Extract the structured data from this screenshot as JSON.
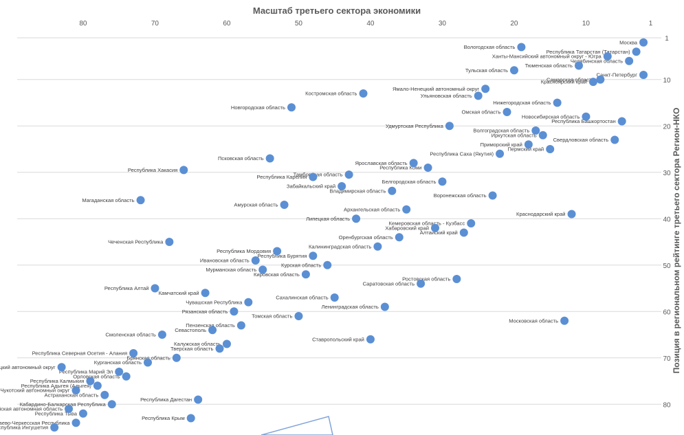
{
  "chart_data": {
    "type": "scatter",
    "title": "Масштаб третьего сектора экономики",
    "xlabel": "",
    "ylabel": "Позиция в региональном рейтинге третьего сектора Регион-НКО",
    "x_reversed": true,
    "y_reversed": true,
    "xlim": [
      1,
      84
    ],
    "ylim": [
      1,
      84
    ],
    "x_ticks": [
      80,
      70,
      60,
      50,
      40,
      30,
      20,
      10,
      1
    ],
    "y_ticks": [
      1,
      10,
      20,
      30,
      40,
      50,
      60,
      70,
      80
    ],
    "grid": "horizontal",
    "color": "#5b8fd4",
    "points": [
      {
        "name": "Москва",
        "x": 2,
        "y": 2
      },
      {
        "name": "Вологодская область",
        "x": 19,
        "y": 3
      },
      {
        "name": "Республика Татарстан (Татарстан)",
        "x": 3,
        "y": 4
      },
      {
        "name": "Ханты-Мансийский автономный округ - Югра",
        "x": 7,
        "y": 5
      },
      {
        "name": "Челябинская область",
        "x": 4,
        "y": 6
      },
      {
        "name": "Тюменская область",
        "x": 11,
        "y": 7
      },
      {
        "name": "Тульская область",
        "x": 20,
        "y": 8
      },
      {
        "name": "Санкт-Петербург",
        "x": 2,
        "y": 9
      },
      {
        "name": "Самарская область",
        "x": 8,
        "y": 10
      },
      {
        "name": "Красноярский край",
        "x": 9,
        "y": 10.5
      },
      {
        "name": "Ямало-Ненецкий автономный округ",
        "x": 24,
        "y": 12
      },
      {
        "name": "Костромская область",
        "x": 41,
        "y": 13
      },
      {
        "name": "Ульяновская область",
        "x": 25,
        "y": 13.5
      },
      {
        "name": "Нижегородская область",
        "x": 14,
        "y": 15
      },
      {
        "name": "Новгородская область",
        "x": 51,
        "y": 16
      },
      {
        "name": "Омская область",
        "x": 21,
        "y": 17
      },
      {
        "name": "Новосибирская область",
        "x": 10,
        "y": 18
      },
      {
        "name": "Республика Башкортостан",
        "x": 5,
        "y": 19
      },
      {
        "name": "Удмуртская Республика",
        "x": 29,
        "y": 20
      },
      {
        "name": "Волгоградская область",
        "x": 17,
        "y": 21
      },
      {
        "name": "Иркутская область",
        "x": 16,
        "y": 22
      },
      {
        "name": "Свердловская область",
        "x": 6,
        "y": 23
      },
      {
        "name": "Приморский край",
        "x": 18,
        "y": 24
      },
      {
        "name": "Пермский край",
        "x": 15,
        "y": 25
      },
      {
        "name": "Республика Саха (Якутия)",
        "x": 22,
        "y": 26
      },
      {
        "name": "Псковская область",
        "x": 54,
        "y": 27
      },
      {
        "name": "Ярославская область",
        "x": 34,
        "y": 28
      },
      {
        "name": "Республика Коми",
        "x": 32,
        "y": 29
      },
      {
        "name": "Республика Хакасия",
        "x": 66,
        "y": 29.5
      },
      {
        "name": "Тамбовская область",
        "x": 43,
        "y": 30.5
      },
      {
        "name": "Республика Карелия",
        "x": 48,
        "y": 31
      },
      {
        "name": "Белгородская область",
        "x": 30,
        "y": 32
      },
      {
        "name": "Забайкальский край",
        "x": 44,
        "y": 33
      },
      {
        "name": "Владимирская область",
        "x": 37,
        "y": 34
      },
      {
        "name": "Воронежская область",
        "x": 23,
        "y": 35
      },
      {
        "name": "Магаданская область",
        "x": 72,
        "y": 36
      },
      {
        "name": "Амурская область",
        "x": 52,
        "y": 37
      },
      {
        "name": "Архангельская область",
        "x": 35,
        "y": 38
      },
      {
        "name": "Краснодарский край",
        "x": 12,
        "y": 39
      },
      {
        "name": "Липецкая область",
        "x": 42,
        "y": 40
      },
      {
        "name": "Кемеровская область - Кузбасс",
        "x": 26,
        "y": 41
      },
      {
        "name": "Хабаровский край",
        "x": 31,
        "y": 42
      },
      {
        "name": "Алтайский край",
        "x": 27,
        "y": 43
      },
      {
        "name": "Оренбургская область",
        "x": 36,
        "y": 44
      },
      {
        "name": "Чеченская Республика",
        "x": 68,
        "y": 45
      },
      {
        "name": "Калининградская область",
        "x": 39,
        "y": 46
      },
      {
        "name": "Республика Мордовия",
        "x": 53,
        "y": 47
      },
      {
        "name": "Республика Бурятия",
        "x": 48,
        "y": 48
      },
      {
        "name": "Ивановская область",
        "x": 56,
        "y": 49
      },
      {
        "name": "Курская область",
        "x": 46,
        "y": 50
      },
      {
        "name": "Мурманская область",
        "x": 55,
        "y": 51
      },
      {
        "name": "Кировская область",
        "x": 49,
        "y": 52
      },
      {
        "name": "Ростовская область",
        "x": 28,
        "y": 53
      },
      {
        "name": "Саратовская область",
        "x": 33,
        "y": 54
      },
      {
        "name": "Республика Алтай",
        "x": 70,
        "y": 55
      },
      {
        "name": "Камчатский край",
        "x": 63,
        "y": 56
      },
      {
        "name": "Сахалинская область",
        "x": 45,
        "y": 57
      },
      {
        "name": "Чувашская Республика",
        "x": 57,
        "y": 58
      },
      {
        "name": "Ленинградская область",
        "x": 38,
        "y": 59
      },
      {
        "name": "Рязанская область",
        "x": 59,
        "y": 60
      },
      {
        "name": "Томская область",
        "x": 50,
        "y": 61
      },
      {
        "name": "Московская область",
        "x": 13,
        "y": 62
      },
      {
        "name": "Пензенская область",
        "x": 58,
        "y": 63
      },
      {
        "name": "Севастополь",
        "x": 62,
        "y": 64
      },
      {
        "name": "Смоленская область",
        "x": 69,
        "y": 65
      },
      {
        "name": "Ставропольский край",
        "x": 40,
        "y": 66
      },
      {
        "name": "Калужская область",
        "x": 60,
        "y": 67
      },
      {
        "name": "Тверская область",
        "x": 61,
        "y": 68
      },
      {
        "name": "Республика Северная Осетия - Алания",
        "x": 73,
        "y": 69
      },
      {
        "name": "Брянская область",
        "x": 67,
        "y": 70
      },
      {
        "name": "Курганская область",
        "x": 71,
        "y": 71
      },
      {
        "name": "Ненецкий автономный округ",
        "x": 83,
        "y": 72
      },
      {
        "name": "Республика Марий Эл",
        "x": 75,
        "y": 73
      },
      {
        "name": "Орловская область",
        "x": 74,
        "y": 74
      },
      {
        "name": "Республика Калмыкия",
        "x": 79,
        "y": 75
      },
      {
        "name": "Республика Адыгея (Адыгея)",
        "x": 78,
        "y": 76
      },
      {
        "name": "Чукотский автономный округ",
        "x": 81,
        "y": 77
      },
      {
        "name": "Астраханская область",
        "x": 77,
        "y": 78
      },
      {
        "name": "Республика Дагестан",
        "x": 64,
        "y": 79
      },
      {
        "name": "Кабардино-Балкарская Республика",
        "x": 76,
        "y": 80
      },
      {
        "name": "Еврейская автономная область",
        "x": 82,
        "y": 81
      },
      {
        "name": "Республика Тыва",
        "x": 80,
        "y": 82
      },
      {
        "name": "Республика Крым",
        "x": 65,
        "y": 83
      },
      {
        "name": "Карачаево-Черкесская Республика",
        "x": 81,
        "y": 84
      },
      {
        "name": "Республика Ингушетия",
        "x": 84,
        "y": 85
      }
    ]
  }
}
